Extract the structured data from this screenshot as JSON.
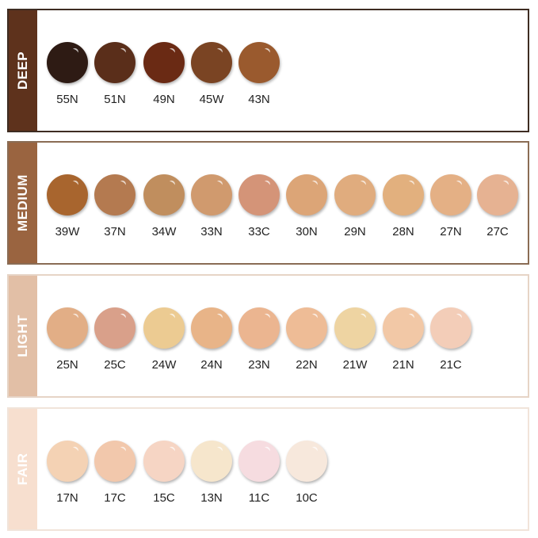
{
  "groups": [
    {
      "name": "DEEP",
      "bar_color": "#5e321c",
      "border_color": "#3e2c22",
      "shades": [
        {
          "code": "55N",
          "color": "#2e1b14"
        },
        {
          "code": "51N",
          "color": "#5a2e1a"
        },
        {
          "code": "49N",
          "color": "#6a2a14"
        },
        {
          "code": "45W",
          "color": "#7a4423"
        },
        {
          "code": "43N",
          "color": "#9a5a2e"
        }
      ]
    },
    {
      "name": "MEDIUM",
      "bar_color": "#9a6440",
      "border_color": "#8a6c54",
      "shades": [
        {
          "code": "39W",
          "color": "#a8652e"
        },
        {
          "code": "37N",
          "color": "#b47a50"
        },
        {
          "code": "34W",
          "color": "#c08e5e"
        },
        {
          "code": "33N",
          "color": "#d09a6e"
        },
        {
          "code": "33C",
          "color": "#d49478"
        },
        {
          "code": "30N",
          "color": "#dca577"
        },
        {
          "code": "29N",
          "color": "#e0ac7e"
        },
        {
          "code": "28N",
          "color": "#e2b07e"
        },
        {
          "code": "27N",
          "color": "#e4b085"
        },
        {
          "code": "27C",
          "color": "#e6b292"
        }
      ]
    },
    {
      "name": "LIGHT",
      "bar_color": "#e2bfa6",
      "border_color": "#e6d4c6",
      "shades": [
        {
          "code": "25N",
          "color": "#e2ae86"
        },
        {
          "code": "25C",
          "color": "#d9a08a"
        },
        {
          "code": "24W",
          "color": "#eccb92"
        },
        {
          "code": "24N",
          "color": "#e8b488"
        },
        {
          "code": "23N",
          "color": "#ebb590"
        },
        {
          "code": "22N",
          "color": "#eebc96"
        },
        {
          "code": "21W",
          "color": "#eed4a2"
        },
        {
          "code": "21N",
          "color": "#f2c8a6"
        },
        {
          "code": "21C",
          "color": "#f3cdb8"
        }
      ]
    },
    {
      "name": "FAIR",
      "bar_color": "#f7dfcf",
      "border_color": "#f1e4da",
      "shades": [
        {
          "code": "17N",
          "color": "#f4d2b4"
        },
        {
          "code": "17C",
          "color": "#f2c8ac"
        },
        {
          "code": "15C",
          "color": "#f6d5c4"
        },
        {
          "code": "13N",
          "color": "#f6e6cc"
        },
        {
          "code": "11C",
          "color": "#f6dce0"
        },
        {
          "code": "10C",
          "color": "#f7e8dc"
        }
      ]
    }
  ]
}
